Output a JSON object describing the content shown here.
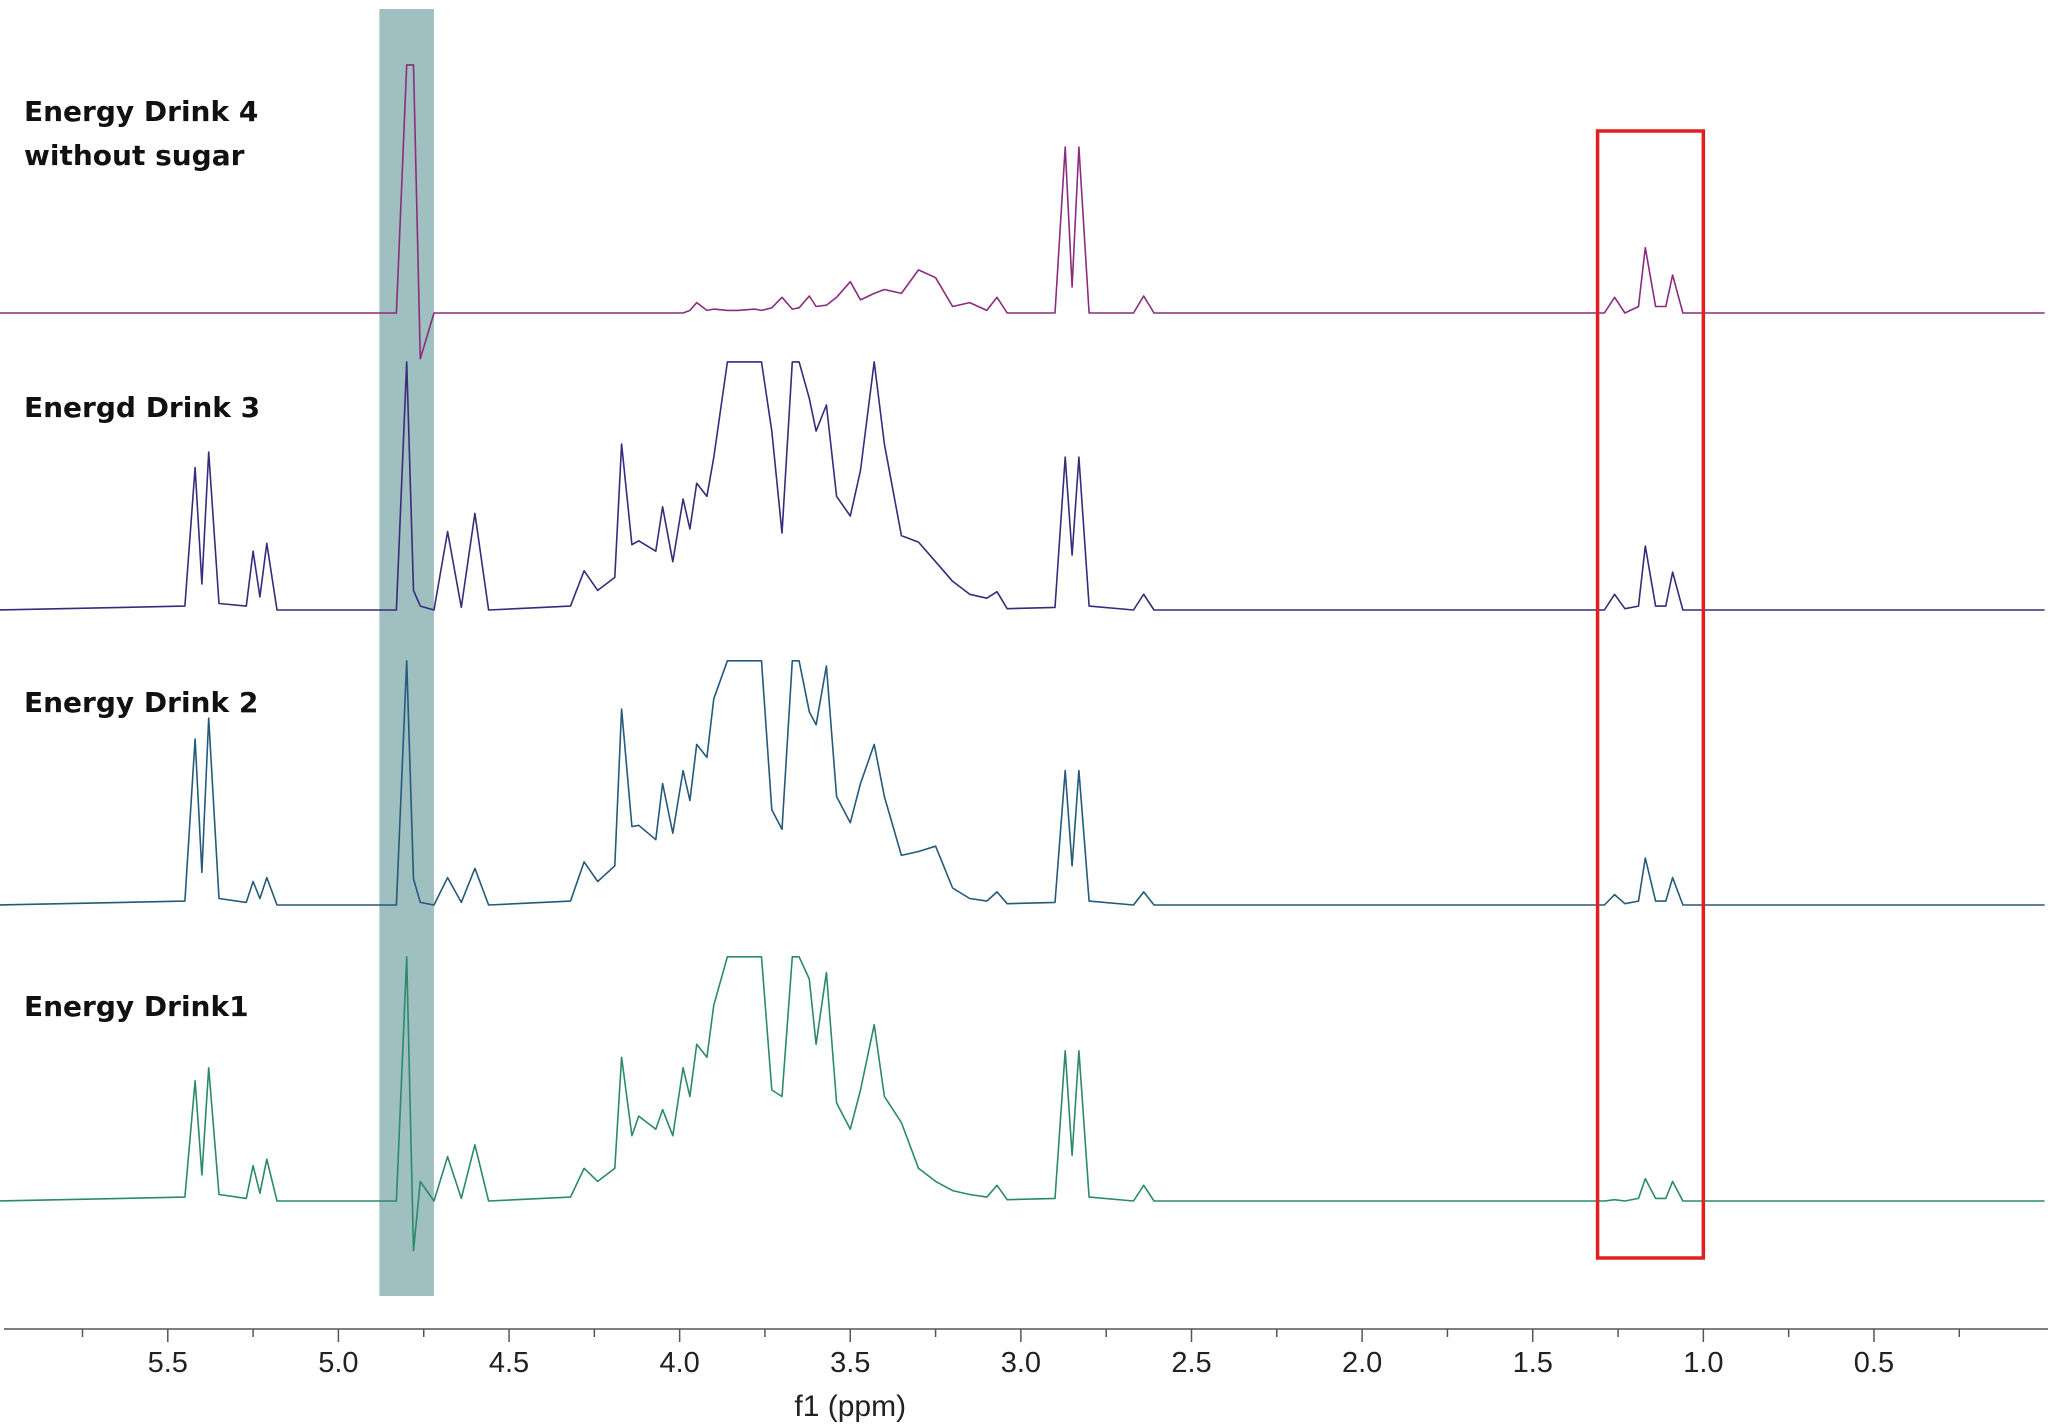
{
  "chart_data": {
    "type": "line",
    "xlabel": "f1 (ppm)",
    "xlim": [
      5.98,
      -0.01
    ],
    "xticks": [
      5.5,
      {
        "value": 5,
        "label": "5.0"
      },
      4.5,
      {
        "value": 4,
        "label": "4.0"
      },
      3.5,
      {
        "value": 3,
        "label": "3.0"
      },
      2.5,
      {
        "value": 2,
        "label": "2.0"
      },
      1.5,
      {
        "value": 1,
        "label": "1.0"
      },
      0.5
    ],
    "xminor_ticks": [
      5.75,
      5.25,
      4.75,
      4.25,
      3.75,
      3.25,
      2.75,
      2.25,
      1.75,
      1.25,
      0.75,
      0.25
    ],
    "highlight_band": {
      "xlim": [
        4.88,
        4.72
      ],
      "color": "#7fa9ab"
    },
    "highlight_box": {
      "xlim": [
        1.31,
        1.0
      ],
      "color": "#e02020"
    },
    "x": [
      6.0,
      5.45,
      5.42,
      5.4,
      5.38,
      5.35,
      5.27,
      5.25,
      5.23,
      5.21,
      5.18,
      4.83,
      4.8,
      4.78,
      4.76,
      4.72,
      4.68,
      4.64,
      4.6,
      4.56,
      4.32,
      4.28,
      4.24,
      4.19,
      4.17,
      4.14,
      4.12,
      4.07,
      4.05,
      4.02,
      3.99,
      3.97,
      3.95,
      3.92,
      3.9,
      3.86,
      3.83,
      3.78,
      3.76,
      3.73,
      3.7,
      3.67,
      3.65,
      3.62,
      3.6,
      3.57,
      3.54,
      3.5,
      3.47,
      3.43,
      3.4,
      3.35,
      3.3,
      3.25,
      3.2,
      3.15,
      3.1,
      3.07,
      3.04,
      2.9,
      2.87,
      2.85,
      2.83,
      2.8,
      2.67,
      2.64,
      2.61,
      1.29,
      1.26,
      1.23,
      1.19,
      1.17,
      1.14,
      1.11,
      1.09,
      1.06,
      0.0
    ],
    "series": [
      {
        "name": "Energy Drink 4 without sugar",
        "color": "#8b2c7e",
        "values": [
          0,
          0,
          0,
          0,
          0,
          0,
          0,
          0,
          0,
          0,
          0,
          0,
          19,
          19,
          -3.5,
          0,
          0,
          0,
          0,
          0,
          0,
          0,
          0,
          0,
          0,
          0,
          0,
          0,
          0,
          0,
          0,
          0.2,
          0.8,
          0.2,
          0.3,
          0.2,
          0.2,
          0.3,
          0.2,
          0.4,
          1.2,
          0.3,
          0.4,
          1.3,
          0.5,
          0.6,
          1.2,
          2.4,
          1.0,
          1.5,
          1.8,
          1.5,
          3.3,
          2.7,
          0.5,
          0.8,
          0.2,
          1.2,
          0,
          0,
          12.7,
          2.0,
          12.7,
          0,
          0,
          1.3,
          0,
          0,
          1.2,
          0,
          0.5,
          5.0,
          0.5,
          0.5,
          2.9,
          0,
          0
        ]
      },
      {
        "name": "Energd Drink 3",
        "color": "#3a2a7a",
        "values": [
          0,
          0.3,
          10.9,
          2.0,
          12.1,
          0.5,
          0.3,
          4.5,
          1.0,
          5.1,
          0,
          0,
          19,
          1.5,
          0.3,
          0,
          6.0,
          0.2,
          7.4,
          0,
          0.3,
          3.0,
          1.5,
          2.5,
          12.7,
          5.0,
          5.3,
          4.5,
          7.9,
          3.7,
          8.5,
          6.2,
          9.7,
          8.7,
          11.7,
          19,
          19,
          19,
          19,
          13.7,
          5.9,
          19,
          19,
          16.2,
          13.7,
          15.7,
          8.7,
          7.2,
          10.7,
          19,
          12.7,
          5.7,
          5.2,
          3.7,
          2.2,
          1.2,
          0.9,
          1.4,
          0.1,
          0.2,
          11.7,
          4.2,
          11.7,
          0.3,
          0,
          1.2,
          0,
          0,
          1.2,
          0.1,
          0.3,
          4.9,
          0.3,
          0.3,
          2.9,
          0,
          0
        ]
      },
      {
        "name": "Energy Drink 2",
        "color": "#255a7a",
        "values": [
          0,
          0.3,
          12.7,
          2.5,
          14.3,
          0.5,
          0.2,
          1.8,
          0.5,
          2.1,
          0,
          0,
          18.7,
          2.0,
          0.2,
          0,
          2.1,
          0.2,
          2.8,
          0,
          0.3,
          3.3,
          1.8,
          3.0,
          15.0,
          6.0,
          6.1,
          5.0,
          9.3,
          5.5,
          10.3,
          8.0,
          12.3,
          11.3,
          15.8,
          18.7,
          18.7,
          18.7,
          18.7,
          7.3,
          5.8,
          18.7,
          18.7,
          14.8,
          13.8,
          18.3,
          8.3,
          6.3,
          9.3,
          12.3,
          8.3,
          3.8,
          4.1,
          4.5,
          1.3,
          0.5,
          0.3,
          1.0,
          0.1,
          0.2,
          10.3,
          3.0,
          10.3,
          0.3,
          0,
          1.0,
          0,
          0,
          0.8,
          0.1,
          0.3,
          3.6,
          0.3,
          0.3,
          2.1,
          0,
          0
        ]
      },
      {
        "name": "Energy Drink1",
        "color": "#2a8a6a",
        "values": [
          0,
          0.3,
          9.2,
          2.0,
          10.2,
          0.5,
          0.2,
          2.7,
          0.6,
          3.2,
          0,
          0,
          18.7,
          -3.8,
          1.5,
          0,
          3.4,
          0.2,
          4.3,
          0,
          0.3,
          2.5,
          1.5,
          2.5,
          11.0,
          5.0,
          6.5,
          5.5,
          7.0,
          5.0,
          10.2,
          8.0,
          12.0,
          11.0,
          15.0,
          18.7,
          18.7,
          18.7,
          18.7,
          8.5,
          8.0,
          18.7,
          18.7,
          17.0,
          12.0,
          17.5,
          7.5,
          5.5,
          8.5,
          13.5,
          8.0,
          6.0,
          2.5,
          1.5,
          0.8,
          0.5,
          0.3,
          1.2,
          0.1,
          0.2,
          11.5,
          3.5,
          11.5,
          0.3,
          0,
          1.2,
          0,
          0,
          0.1,
          0,
          0.2,
          1.7,
          0.2,
          0.2,
          1.5,
          0,
          0
        ]
      }
    ]
  }
}
